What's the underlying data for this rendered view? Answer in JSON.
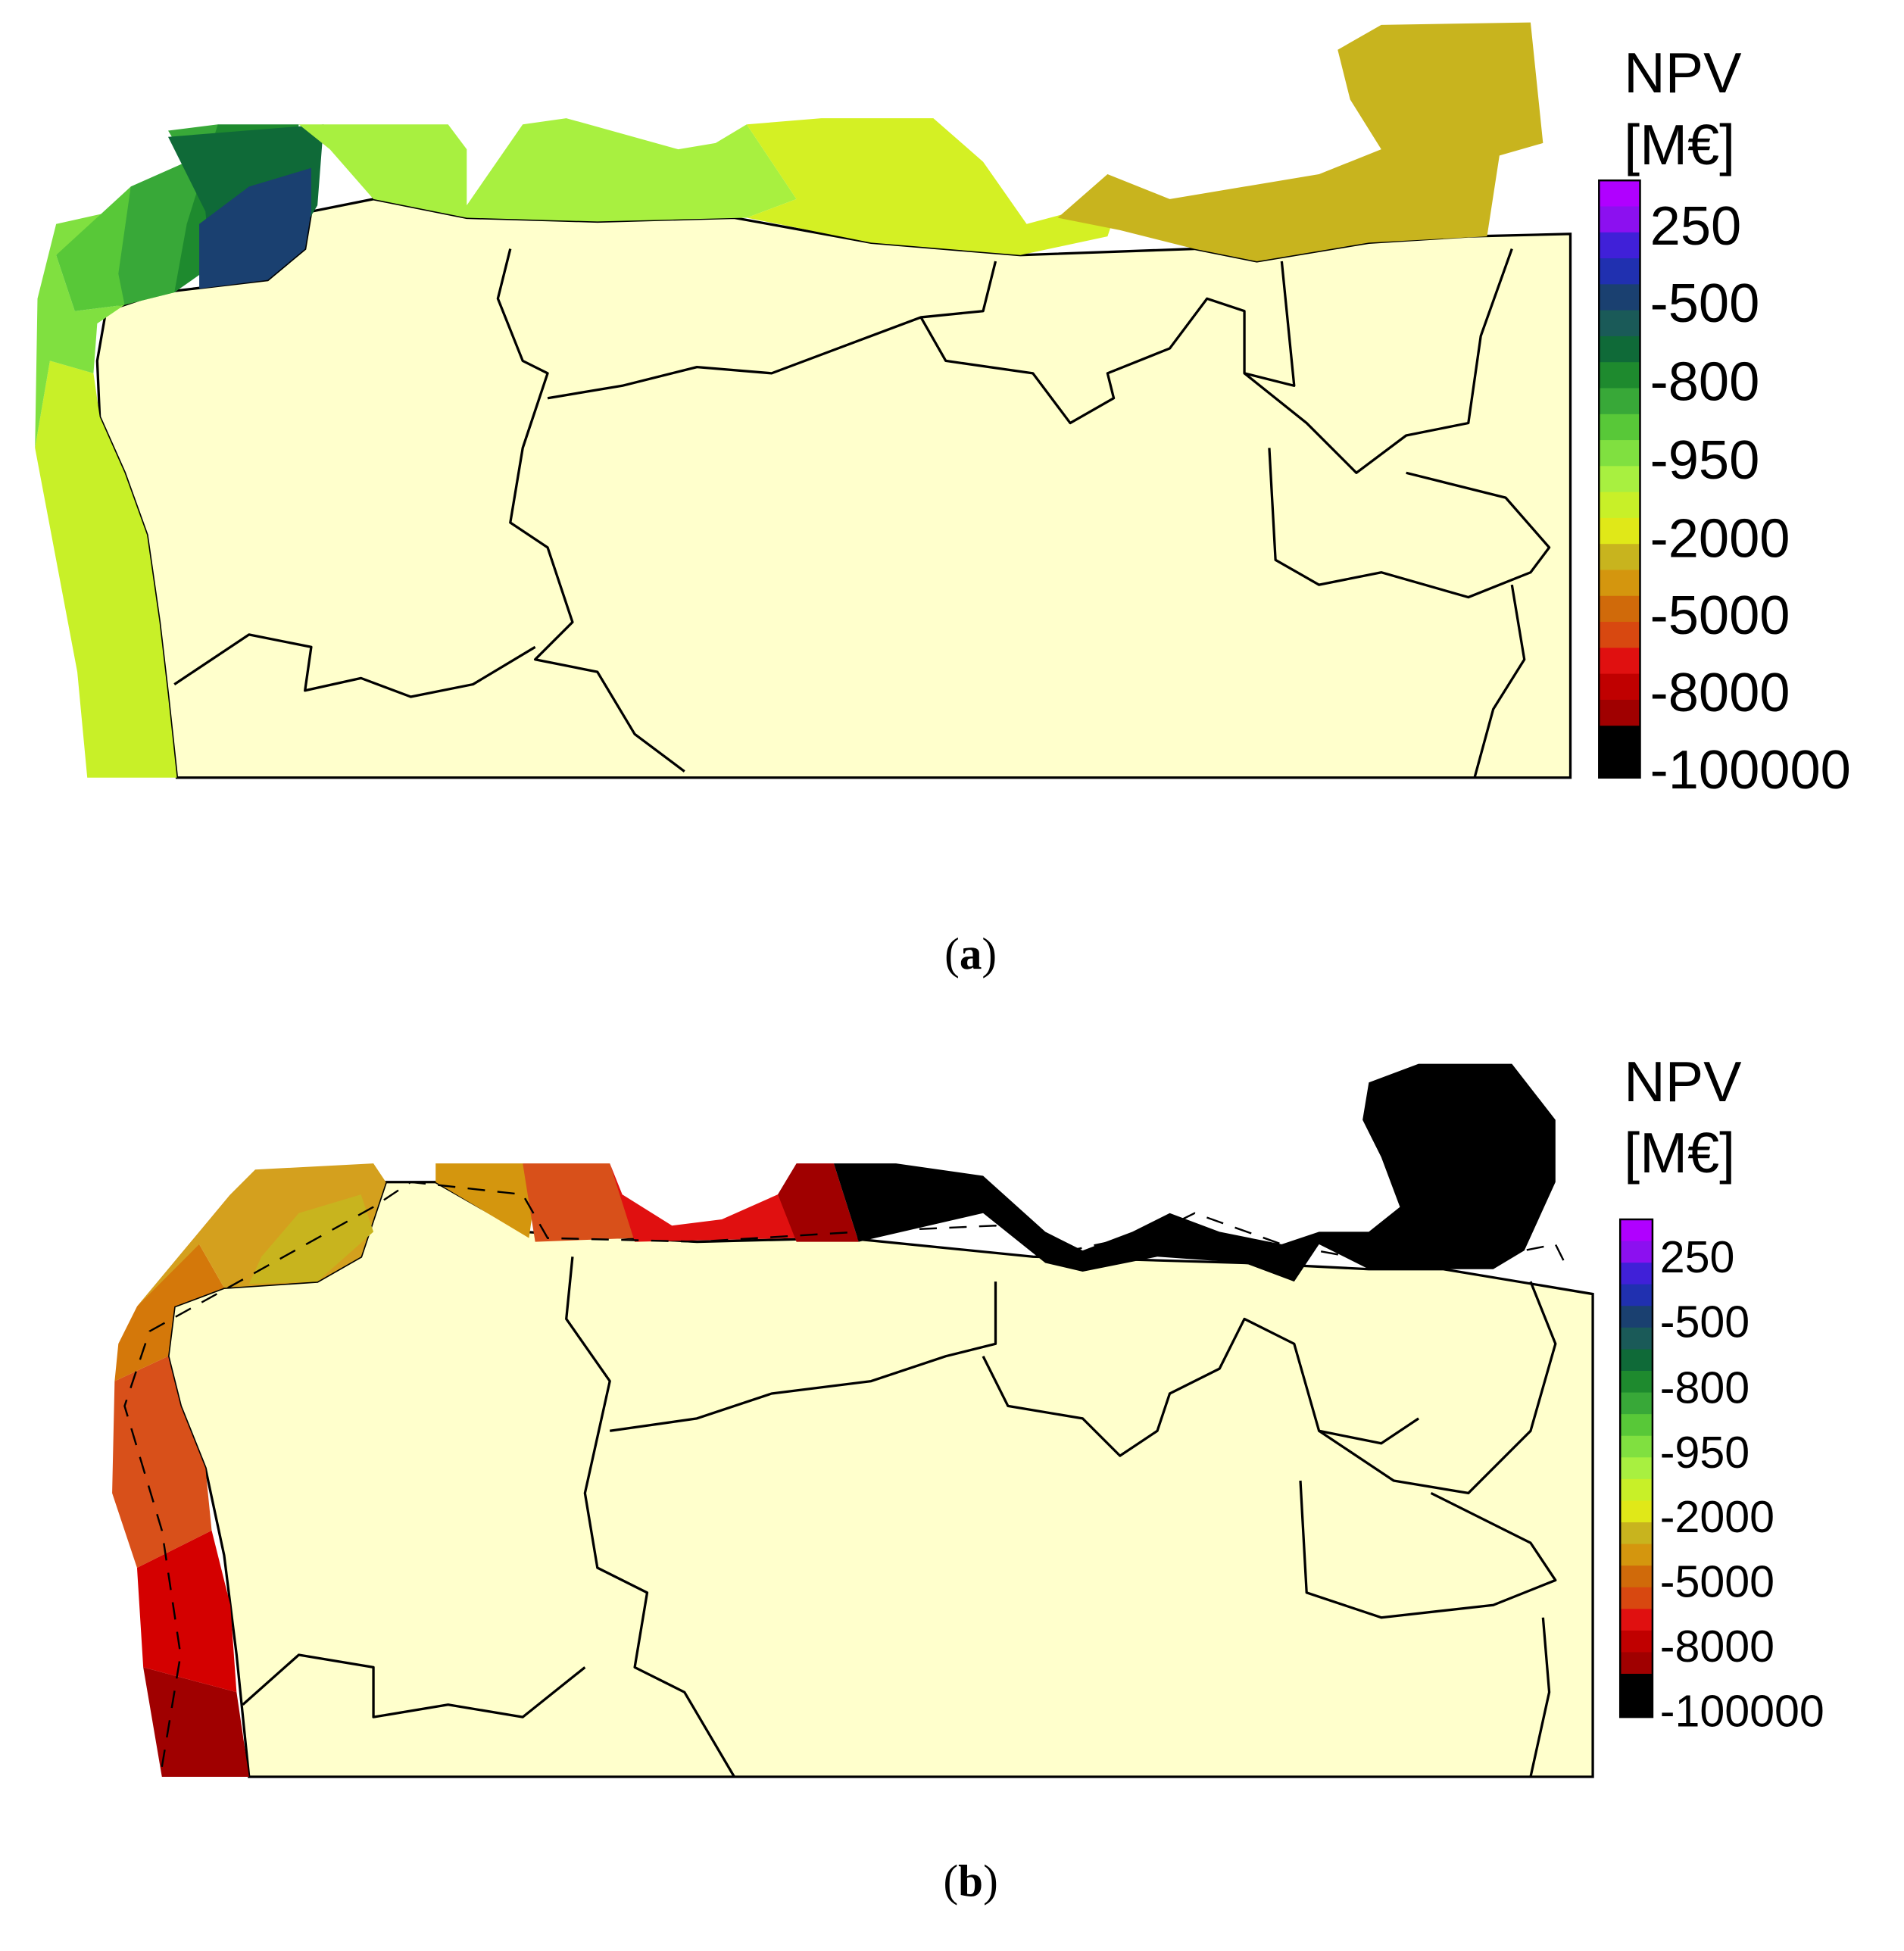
{
  "panels": [
    {
      "legend": {
        "title": "NPV",
        "unit": "[M€]",
        "labels": [
          "250",
          "-500",
          "-800",
          "-950",
          "-2000",
          "-5000",
          "-8000",
          "-100000"
        ],
        "colors": [
          "#b000ff",
          "#8c10f0",
          "#4020d8",
          "#2030b0",
          "#1a4070",
          "#1a5a58",
          "#0f6a38",
          "#1e8a2e",
          "#38a838",
          "#58c838",
          "#80e040",
          "#a8f040",
          "#c8f028",
          "#e0e818",
          "#c8b41e",
          "#d4960e",
          "#d06a0a",
          "#d84810",
          "#e01010",
          "#c00000",
          "#a00000",
          "#000000",
          "#000000"
        ]
      },
      "caption": [
        "(",
        "a",
        ")"
      ]
    },
    {
      "legend": {
        "title": "NPV",
        "unit": "[M€]",
        "labels": [
          "250",
          "-500",
          "-800",
          "-950",
          "-2000",
          "-5000",
          "-8000",
          "-100000"
        ],
        "colors": [
          "#b000ff",
          "#8c10f0",
          "#4020d8",
          "#2030b0",
          "#1a4070",
          "#1a5a58",
          "#0f6a38",
          "#1e8a2e",
          "#38a838",
          "#58c838",
          "#80e040",
          "#a8f040",
          "#c8f028",
          "#e0e818",
          "#c8b41e",
          "#d4960e",
          "#d06a0a",
          "#d84810",
          "#e01010",
          "#c00000",
          "#a00000",
          "#000000",
          "#000000"
        ]
      },
      "caption": [
        "(",
        "b",
        ")"
      ]
    }
  ]
}
